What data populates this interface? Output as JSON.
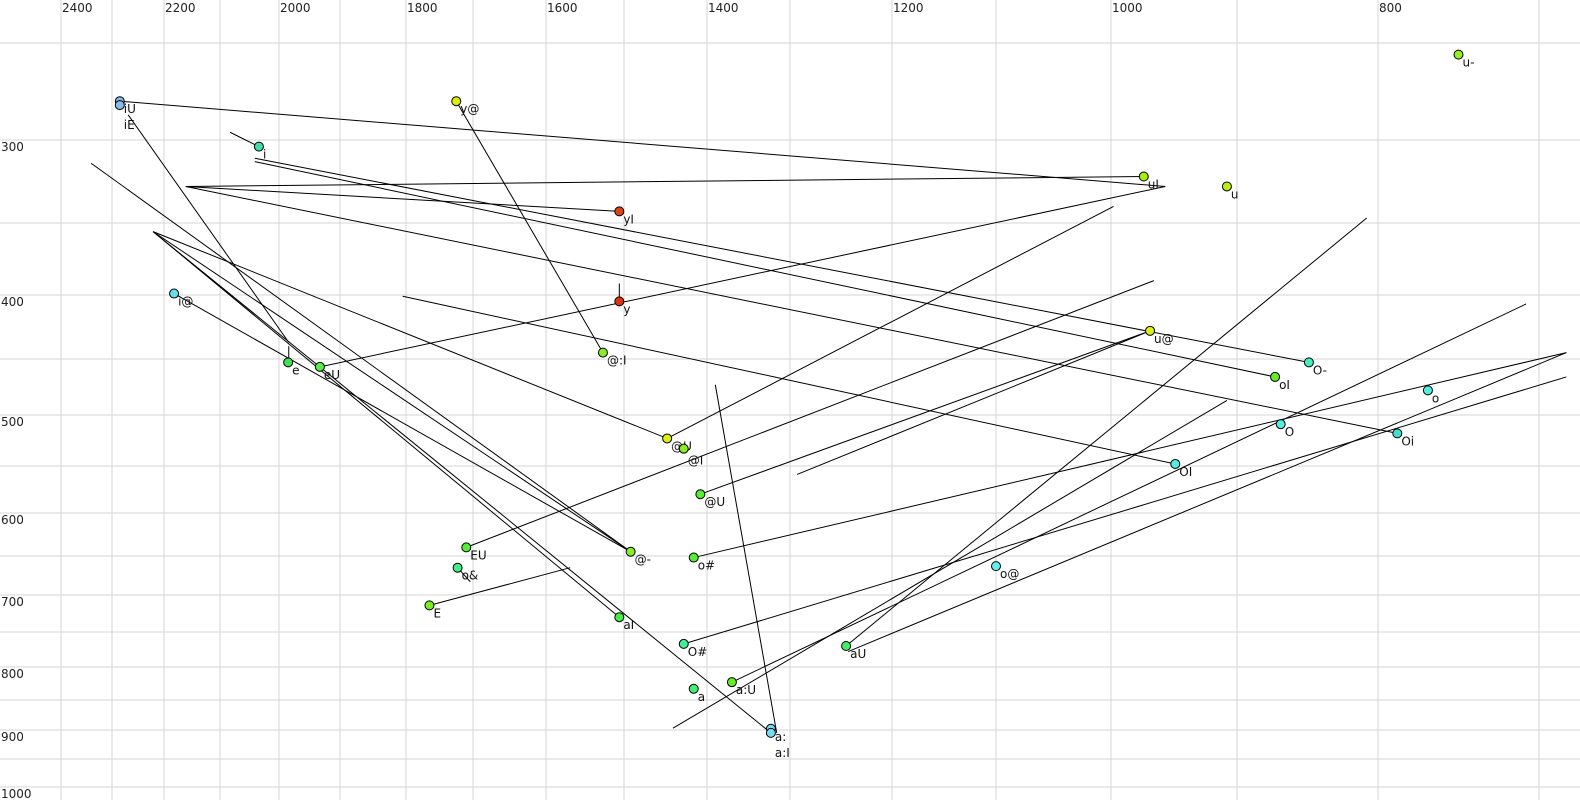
{
  "chart_data": {
    "type": "scatter",
    "title": "",
    "xlabel": "",
    "ylabel": "",
    "x_axis": {
      "position": "top",
      "reversed": true,
      "scale": "nonlinear",
      "range": [
        2400,
        700
      ],
      "grid_step": 100,
      "tick_labels": [
        2400,
        2200,
        2000,
        1800,
        1600,
        1400,
        1200,
        1000,
        800
      ]
    },
    "y_axis": {
      "position": "left",
      "reversed": true,
      "scale": "nonlinear",
      "range": [
        250,
        1000
      ],
      "grid_step": 50,
      "tick_labels": [
        300,
        400,
        500,
        600,
        700,
        800,
        900,
        1000
      ]
    },
    "grid": true,
    "points": [
      {
        "label": "iU",
        "x": 2285,
        "y": 280,
        "color": "#88bbee"
      },
      {
        "label": "iE",
        "x": 2285,
        "y": 282,
        "color": "#88bbee"
      },
      {
        "label": "y@",
        "x": 1725,
        "y": 280,
        "color": "#ddee00"
      },
      {
        "label": "i",
        "x": 2034,
        "y": 304,
        "color": "#44ddaa"
      },
      {
        "label": "yI",
        "x": 1506,
        "y": 343,
        "color": "#dd4411"
      },
      {
        "label": "y",
        "x": 1506,
        "y": 405,
        "color": "#dd3311"
      },
      {
        "label": "@:I",
        "x": 1527,
        "y": 445,
        "color": "#88ee22"
      },
      {
        "label": "i@",
        "x": 2182,
        "y": 399,
        "color": "#66ddee"
      },
      {
        "label": "e",
        "x": 1985,
        "y": 453,
        "color": "#44dd55"
      },
      {
        "label": "eU",
        "x": 1933,
        "y": 457,
        "color": "#55ee44"
      },
      {
        "label": "uI",
        "x": 974,
        "y": 322,
        "color": "#aaee11"
      },
      {
        "label": "u",
        "x": 908,
        "y": 328,
        "color": "#bbee11"
      },
      {
        "label": "u-",
        "x": 750,
        "y": 256,
        "color": "#99ee22"
      },
      {
        "label": "u@",
        "x": 969,
        "y": 428,
        "color": "#ddee11"
      },
      {
        "label": "O-",
        "x": 849,
        "y": 453,
        "color": "#44eebb"
      },
      {
        "label": "oI",
        "x": 873,
        "y": 466,
        "color": "#66ee22"
      },
      {
        "label": "o",
        "x": 769,
        "y": 478,
        "color": "#55eedd"
      },
      {
        "label": "O",
        "x": 869,
        "y": 509,
        "color": "#55eedd"
      },
      {
        "label": "Oi",
        "x": 788,
        "y": 518,
        "color": "#44ddcc"
      },
      {
        "label": "OI",
        "x": 949,
        "y": 548,
        "color": "#55eedd"
      },
      {
        "label": "@U",
        "x": 1448,
        "y": 523,
        "color": "#ddee11"
      },
      {
        "label": "@I",
        "x": 1428,
        "y": 533,
        "color": "#88ee22"
      },
      {
        "label": "@U",
        "x": 1408,
        "y": 580,
        "color": "#55ee33"
      },
      {
        "label": "EU",
        "x": 1710,
        "y": 640,
        "color": "#55ee33"
      },
      {
        "label": "o&",
        "x": 1723,
        "y": 665,
        "color": "#44ee88"
      },
      {
        "label": "E",
        "x": 1765,
        "y": 714,
        "color": "#77ee22"
      },
      {
        "label": "@-",
        "x": 1492,
        "y": 645,
        "color": "#88ee22"
      },
      {
        "label": "o#",
        "x": 1416,
        "y": 652,
        "color": "#55ee33"
      },
      {
        "label": "aI",
        "x": 1506,
        "y": 730,
        "color": "#44ee44"
      },
      {
        "label": "O#",
        "x": 1428,
        "y": 767,
        "color": "#44ee99"
      },
      {
        "label": "a",
        "x": 1416,
        "y": 833,
        "color": "#44ee77"
      },
      {
        "label": "a:U",
        "x": 1370,
        "y": 823,
        "color": "#66ee22"
      },
      {
        "label": "aU",
        "x": 1245,
        "y": 770,
        "color": "#44ee66"
      },
      {
        "label": "o@",
        "x": 1100,
        "y": 663,
        "color": "#66eeee"
      },
      {
        "label": "a:",
        "x": 1323,
        "y": 898,
        "color": "#77ddee"
      },
      {
        "label": "a:I",
        "x": 1323,
        "y": 905,
        "color": "#77ddee"
      }
    ],
    "trajectories": [
      [
        [
          2285,
          280
        ],
        [
          957,
          328
        ]
      ],
      [
        [
          2161,
          328
        ],
        [
          974,
          322
        ]
      ],
      [
        [
          2161,
          328
        ],
        [
          1506,
          343
        ]
      ],
      [
        [
          2161,
          328
        ],
        [
          788,
          518
        ]
      ],
      [
        [
          2041,
          311
        ],
        [
          849,
          453
        ]
      ],
      [
        [
          2041,
          313
        ],
        [
          873,
          466
        ]
      ],
      [
        [
          2083,
          296
        ],
        [
          2034,
          304
        ]
      ],
      [
        [
          1933,
          457
        ],
        [
          957,
          328
        ]
      ],
      [
        [
          1506,
          392
        ],
        [
          1506,
          405
        ]
      ],
      [
        [
          1725,
          280
        ],
        [
          1527,
          445
        ]
      ],
      [
        [
          2269,
          287
        ],
        [
          1984,
          437
        ]
      ],
      [
        [
          1984,
          440
        ],
        [
          1984,
          453
        ]
      ],
      [
        [
          2341,
          314
        ],
        [
          1492,
          645
        ]
      ],
      [
        [
          2221,
          356
        ],
        [
          1492,
          645
        ]
      ],
      [
        [
          2221,
          356
        ],
        [
          1506,
          730
        ]
      ],
      [
        [
          2221,
          356
        ],
        [
          1323,
          905
        ]
      ],
      [
        [
          2182,
          399
        ],
        [
          1492,
          645
        ]
      ],
      [
        [
          2221,
          356
        ],
        [
          1448,
          523
        ]
      ],
      [
        [
          1805,
          401
        ],
        [
          949,
          548
        ]
      ],
      [
        [
          1448,
          523
        ],
        [
          998,
          340
        ]
      ],
      [
        [
          1710,
          640
        ],
        [
          966,
          390
        ]
      ],
      [
        [
          1408,
          580
        ],
        [
          969,
          428
        ]
      ],
      [
        [
          1293,
          559
        ],
        [
          969,
          428
        ]
      ],
      [
        [
          1416,
          652
        ],
        [
          683,
          445
        ]
      ],
      [
        [
          1765,
          714
        ],
        [
          1569,
          665
        ]
      ],
      [
        [
          1723,
          665
        ],
        [
          1704,
          683
        ]
      ],
      [
        [
          1390,
          473
        ],
        [
          1316,
          905
        ]
      ],
      [
        [
          1428,
          767
        ],
        [
          683,
          466
        ]
      ],
      [
        [
          1441,
          897
        ],
        [
          908,
          487
        ]
      ],
      [
        [
          1370,
          823
        ],
        [
          708,
          407
        ]
      ],
      [
        [
          1245,
          770
        ],
        [
          808,
          347
        ]
      ],
      [
        [
          1243,
          778
        ],
        [
          683,
          445
        ]
      ]
    ]
  }
}
